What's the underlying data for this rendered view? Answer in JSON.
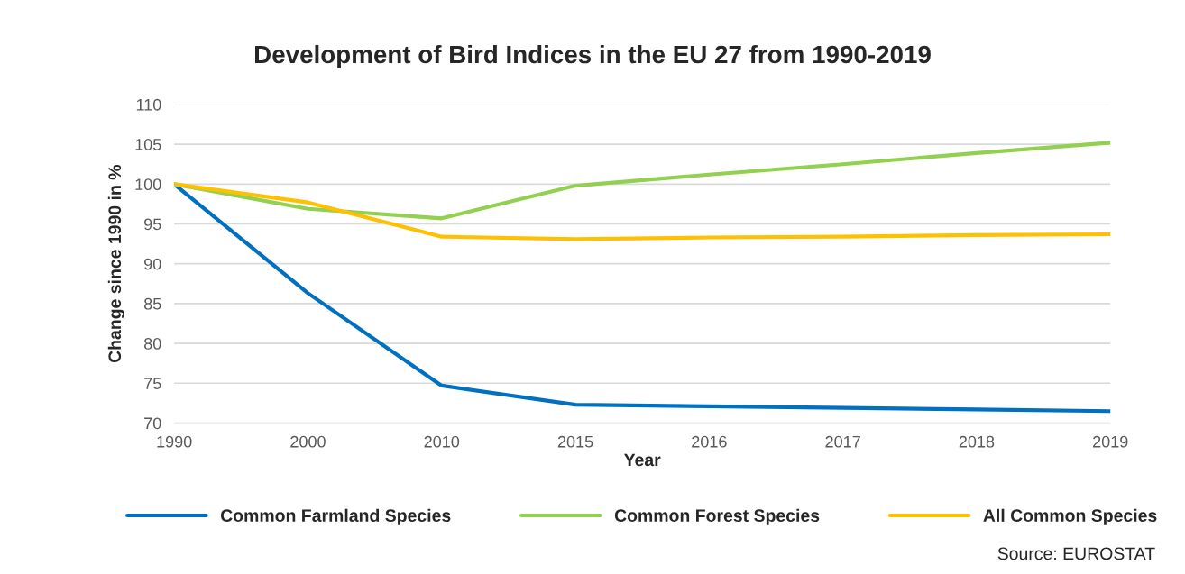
{
  "chart_data": {
    "type": "line",
    "title": "Development of Bird Indices in the EU 27 from 1990-2019",
    "xlabel": "Year",
    "ylabel": "Change since 1990 in %",
    "categories": [
      "1990",
      "2000",
      "2010",
      "2015",
      "2016",
      "2017",
      "2018",
      "2019"
    ],
    "series": [
      {
        "name": "Common Farmland Species",
        "color": "#0070c0",
        "values": [
          100,
          86.3,
          74.7,
          72.3,
          72.1,
          71.9,
          71.7,
          71.5
        ]
      },
      {
        "name": "Common Forest Species",
        "color": "#92d050",
        "values": [
          100,
          96.9,
          95.7,
          99.8,
          101.2,
          102.5,
          103.9,
          105.2
        ]
      },
      {
        "name": "All Common Species",
        "color": "#ffc000",
        "values": [
          100,
          97.7,
          93.4,
          93.1,
          93.3,
          93.4,
          93.6,
          93.7
        ]
      }
    ],
    "ylim": [
      70,
      110
    ],
    "yticks": [
      70,
      75,
      80,
      85,
      90,
      95,
      100,
      105,
      110
    ],
    "grid": "y",
    "legend": "bottom",
    "marker": "none",
    "line_style": "solid",
    "annotations": [
      "Source: EUROSTAT"
    ]
  }
}
